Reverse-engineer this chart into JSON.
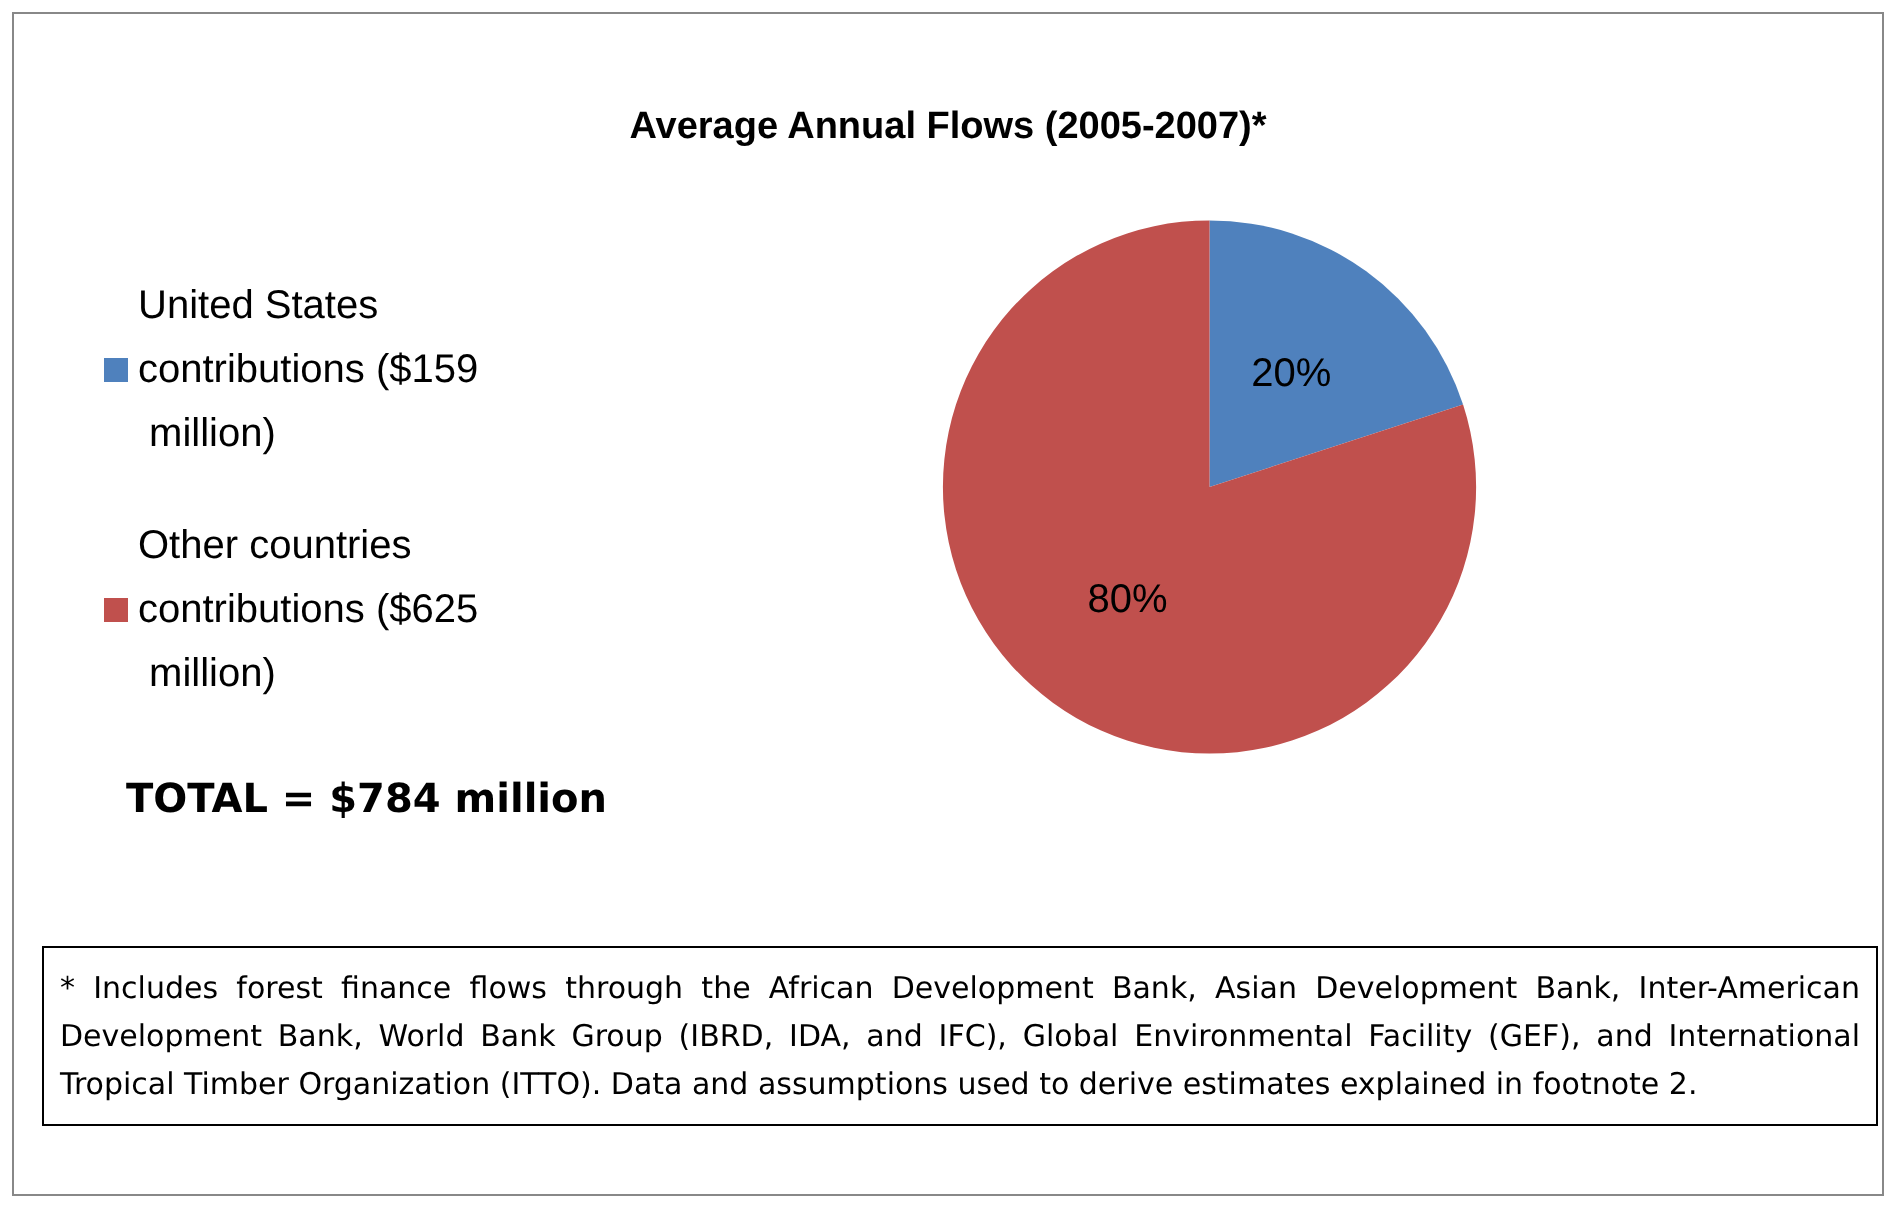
{
  "chart_data": {
    "type": "pie",
    "title": "Average Annual Flows (2005-2007)*",
    "categories": [
      "United States contributions ($159 million)",
      "Other countries contributions ($625 million)"
    ],
    "values": [
      20,
      80
    ],
    "colors": [
      "#4f81bd",
      "#c0504d"
    ],
    "value_labels": [
      "20%",
      "80%"
    ],
    "legend": "left",
    "annotations": [
      "TOTAL = $784 million",
      "* Includes forest finance flows through the African Development Bank, Asian Development Bank, Inter-American Development Bank, World Bank Group (IBRD, IDA, and IFC), Global Environmental Facility (GEF), and International Tropical Timber Organization (ITTO). Data and assumptions used to derive estimates explained in footnote 2."
    ]
  }
}
